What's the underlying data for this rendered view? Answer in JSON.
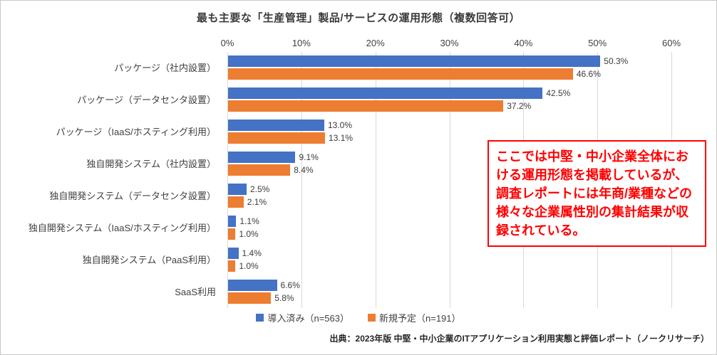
{
  "title": "最も主要な「生産管理」製品/サービスの運用形態（複数回答可）",
  "chart_data": {
    "type": "bar",
    "orientation": "horizontal",
    "categories": [
      "パッケージ（社内設置）",
      "パッケージ（データセンタ設置）",
      "パッケージ（IaaS/ホスティング利用）",
      "独自開発システム（社内設置）",
      "独自開発システム（データセンタ設置）",
      "独自開発システム（IaaS/ホスティング利用）",
      "独自開発システム（PaaS利用）",
      "SaaS利用"
    ],
    "series": [
      {
        "name": "導入済み（n=563）",
        "color": "#4472C4",
        "values": [
          50.3,
          42.5,
          13.0,
          9.1,
          2.5,
          1.1,
          1.4,
          6.6
        ]
      },
      {
        "name": "新規予定（n=191）",
        "color": "#ED7D31",
        "values": [
          46.6,
          37.2,
          13.1,
          8.4,
          2.1,
          1.0,
          1.0,
          5.8
        ]
      }
    ],
    "xlim": [
      0,
      60
    ],
    "x_ticks": [
      "0%",
      "10%",
      "20%",
      "30%",
      "40%",
      "50%",
      "60%"
    ],
    "grid": true,
    "legend_position": "bottom",
    "value_label_suffix": "%"
  },
  "annotation": {
    "text": "ここでは中堅・中小企業全体における運用形態を掲載しているが、調査レポートには年商/業種などの様々な企業属性別の集計結果が収録されている。",
    "border_color": "#ff0000",
    "text_color": "#ff0000"
  },
  "footer": "出典：2023年版 中堅・中小企業のITアプリケーション利用実態と評価レポート（ノークリサーチ）"
}
